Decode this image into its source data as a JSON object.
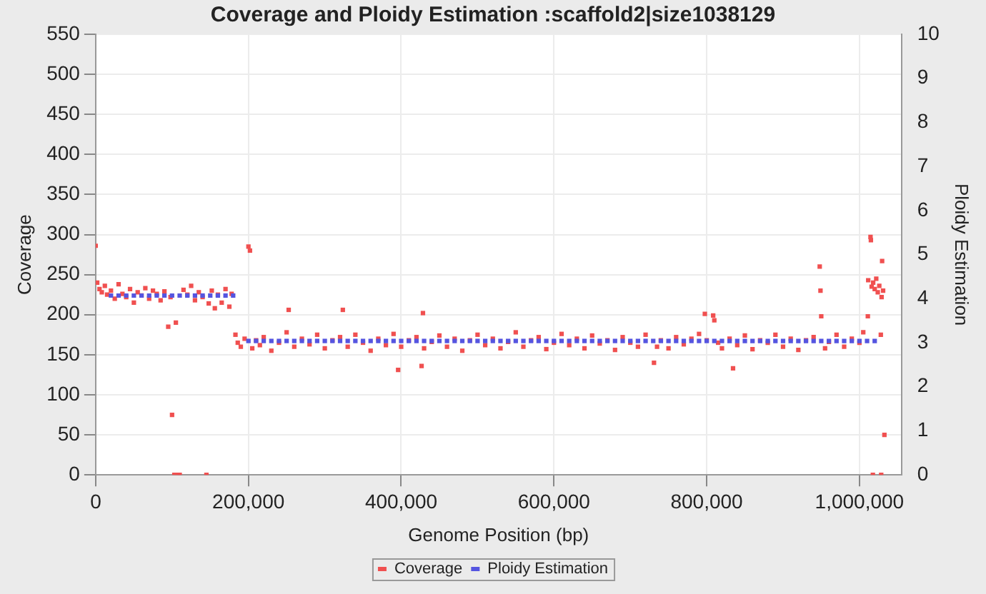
{
  "chart_data": {
    "type": "scatter",
    "title": "Coverage and Ploidy Estimation :scaffold2|size1038129",
    "xlabel": "Genome Position (bp)",
    "ylabel": "Coverage",
    "y2label": "Ploidy Estimation",
    "xlim": [
      0,
      1055000
    ],
    "xticks": [
      0,
      {
        "value": 200000,
        "label": "200,000"
      },
      {
        "value": 400000,
        "label": "400,000"
      },
      {
        "value": 600000,
        "label": "600,000"
      },
      {
        "value": 800000,
        "label": "800,000"
      },
      {
        "value": 1000000,
        "label": "1,000,000"
      }
    ],
    "ylim": [
      0,
      550
    ],
    "yticks": [
      0,
      50,
      100,
      150,
      200,
      250,
      300,
      350,
      400,
      450,
      500,
      550
    ],
    "y2lim": [
      0,
      10
    ],
    "y2ticks": [
      0,
      1,
      2,
      3,
      4,
      5,
      6,
      7,
      8,
      9,
      10
    ],
    "grid": true,
    "legend": "bottom",
    "marker": "square",
    "series": [
      {
        "name": "Coverage",
        "color": "#f05050",
        "x": [
          0,
          2000,
          5000,
          8000,
          12000,
          15000,
          20000,
          25000,
          30000,
          35000,
          40000,
          45000,
          50000,
          55000,
          60000,
          65000,
          70000,
          75000,
          80000,
          85000,
          90000,
          95000,
          98000,
          100000,
          103000,
          105000,
          108000,
          110000,
          115000,
          120000,
          125000,
          130000,
          135000,
          140000,
          145000,
          148000,
          152000,
          156000,
          160000,
          165000,
          170000,
          175000,
          178000,
          183000,
          186000,
          190000,
          195000,
          200000,
          202000,
          205000,
          210000,
          215000,
          220000,
          230000,
          240000,
          250000,
          252700,
          260000,
          270000,
          280000,
          290000,
          300000,
          310000,
          320000,
          323600,
          330000,
          340000,
          350000,
          360000,
          370000,
          380000,
          390000,
          396000,
          400000,
          410000,
          420000,
          426700,
          428500,
          430000,
          440000,
          450000,
          460000,
          470000,
          480000,
          490000,
          500000,
          510000,
          520000,
          530000,
          540000,
          550000,
          560000,
          570000,
          580000,
          590000,
          600000,
          610000,
          620000,
          630000,
          640000,
          650000,
          660000,
          670000,
          680000,
          690000,
          700000,
          710000,
          720000,
          731000,
          735000,
          740000,
          750000,
          760000,
          770000,
          780000,
          790000,
          797600,
          800000,
          808500,
          810000,
          815000,
          820000,
          830000,
          834500,
          840000,
          850000,
          860000,
          870000,
          880000,
          890000,
          900000,
          910000,
          920000,
          930000,
          940000,
          948000,
          949000,
          950000,
          955000,
          960000,
          970000,
          980000,
          990000,
          1000000,
          1005000,
          1011000,
          1011500,
          1014500,
          1015000,
          1016000,
          1017600,
          1018000,
          1020000,
          1022000,
          1024000,
          1026000,
          1028000,
          1028500,
          1029000,
          1029700,
          1031000,
          1032700
        ],
        "values": [
          286,
          240,
          232,
          228,
          236,
          225,
          230,
          220,
          238,
          226,
          222,
          232,
          215,
          228,
          224,
          233,
          220,
          230,
          226,
          218,
          229,
          185,
          222,
          75,
          0,
          190,
          0,
          0,
          231,
          225,
          236,
          218,
          228,
          222,
          0,
          214,
          230,
          208,
          225,
          215,
          232,
          210,
          226,
          175,
          165,
          160,
          170,
          285,
          280,
          158,
          168,
          162,
          172,
          155,
          165,
          178,
          206,
          160,
          170,
          163,
          175,
          158,
          168,
          172,
          206,
          160,
          175,
          165,
          155,
          170,
          162,
          176,
          131,
          160,
          168,
          172,
          136,
          202,
          158,
          166,
          174,
          160,
          170,
          155,
          168,
          175,
          162,
          170,
          158,
          166,
          178,
          160,
          168,
          172,
          157,
          165,
          176,
          162,
          170,
          158,
          174,
          164,
          168,
          156,
          172,
          165,
          160,
          175,
          140,
          160,
          168,
          158,
          172,
          163,
          170,
          176,
          201,
          168,
          199,
          193,
          165,
          158,
          170,
          133,
          162,
          174,
          157,
          168,
          165,
          175,
          160,
          170,
          156,
          168,
          172,
          260,
          230,
          198,
          158,
          166,
          175,
          160,
          170,
          165,
          178,
          198,
          243,
          297,
          293,
          235,
          0,
          240,
          232,
          245,
          228,
          236,
          175,
          0,
          222,
          267,
          230,
          50
        ]
      },
      {
        "name": "Ploidy Estimation",
        "color": "#5555e0",
        "axis": "y2",
        "x": [
          20000,
          30000,
          40000,
          50000,
          60000,
          70000,
          80000,
          90000,
          100000,
          110000,
          120000,
          130000,
          140000,
          150000,
          160000,
          170000,
          180000,
          200000,
          210000,
          220000,
          230000,
          240000,
          250000,
          260000,
          270000,
          280000,
          290000,
          300000,
          310000,
          320000,
          330000,
          340000,
          350000,
          360000,
          370000,
          380000,
          390000,
          400000,
          410000,
          420000,
          430000,
          440000,
          450000,
          460000,
          470000,
          480000,
          490000,
          500000,
          510000,
          520000,
          530000,
          540000,
          550000,
          560000,
          570000,
          580000,
          590000,
          600000,
          610000,
          620000,
          630000,
          640000,
          650000,
          660000,
          670000,
          680000,
          690000,
          700000,
          710000,
          720000,
          730000,
          740000,
          750000,
          760000,
          770000,
          780000,
          790000,
          800000,
          810000,
          820000,
          830000,
          840000,
          850000,
          860000,
          870000,
          880000,
          890000,
          900000,
          910000,
          920000,
          930000,
          940000,
          950000,
          960000,
          970000,
          980000,
          990000,
          1000000,
          1010000,
          1020000
        ],
        "values": [
          4.07,
          4.07,
          4.07,
          4.07,
          4.07,
          4.07,
          4.07,
          4.07,
          4.07,
          4.07,
          4.07,
          4.07,
          4.07,
          4.07,
          4.07,
          4.07,
          4.07,
          3.04,
          3.04,
          3.04,
          3.04,
          3.04,
          3.04,
          3.04,
          3.04,
          3.04,
          3.04,
          3.04,
          3.04,
          3.04,
          3.04,
          3.04,
          3.04,
          3.04,
          3.04,
          3.04,
          3.04,
          3.04,
          3.04,
          3.04,
          3.04,
          3.04,
          3.04,
          3.04,
          3.04,
          3.04,
          3.04,
          3.04,
          3.04,
          3.04,
          3.04,
          3.04,
          3.04,
          3.04,
          3.04,
          3.04,
          3.04,
          3.04,
          3.04,
          3.04,
          3.04,
          3.04,
          3.04,
          3.04,
          3.04,
          3.04,
          3.04,
          3.04,
          3.04,
          3.04,
          3.04,
          3.04,
          3.04,
          3.04,
          3.04,
          3.04,
          3.04,
          3.04,
          3.04,
          3.04,
          3.04,
          3.04,
          3.04,
          3.04,
          3.04,
          3.04,
          3.04,
          3.04,
          3.04,
          3.04,
          3.04,
          3.04,
          3.04,
          3.04,
          3.04,
          3.04,
          3.04,
          3.04,
          3.04,
          3.04
        ]
      }
    ]
  }
}
